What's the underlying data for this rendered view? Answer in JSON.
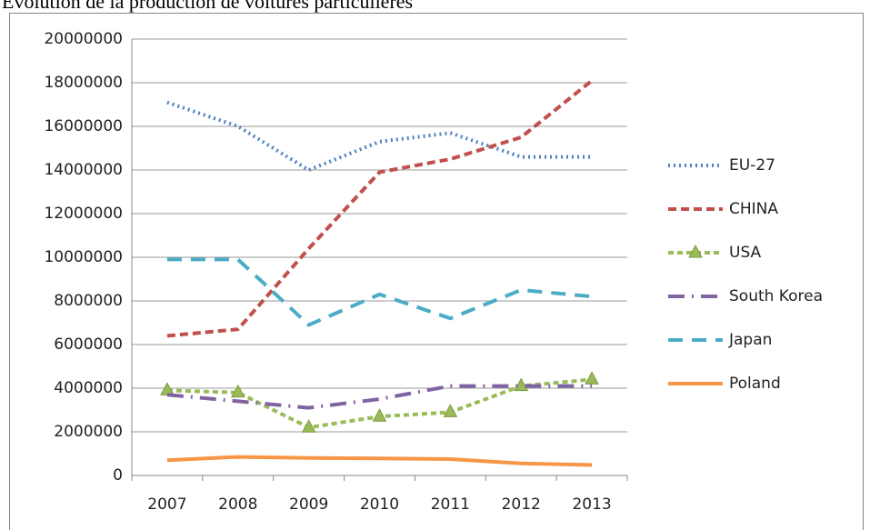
{
  "chart_data": {
    "type": "line",
    "title": "Évolution de la production de voitures particulières",
    "categories": [
      "2007",
      "2008",
      "2009",
      "2010",
      "2011",
      "2012",
      "2013"
    ],
    "ylim": [
      0,
      20000000
    ],
    "yticks": [
      0,
      2000000,
      4000000,
      6000000,
      8000000,
      10000000,
      12000000,
      14000000,
      16000000,
      18000000,
      20000000
    ],
    "grid": true,
    "legend": "right",
    "series": [
      {
        "name": "EU-27",
        "color": "#4f81bd",
        "line_style": "dotted",
        "values": [
          17100000,
          16000000,
          14000000,
          15300000,
          15700000,
          14600000,
          14600000
        ]
      },
      {
        "name": "CHINA",
        "color": "#c0504d",
        "line_style": "dashed",
        "values": [
          6400000,
          6700000,
          10400000,
          13900000,
          14500000,
          15500000,
          18100000
        ]
      },
      {
        "name": "USA",
        "color": "#9bbb59",
        "line_style": "short-dashed",
        "marker": "triangle",
        "values": [
          3900000,
          3800000,
          2200000,
          2700000,
          2900000,
          4100000,
          4400000
        ]
      },
      {
        "name": "South Korea",
        "color": "#8064a2",
        "line_style": "dash-dot",
        "values": [
          3700000,
          3400000,
          3100000,
          3500000,
          4100000,
          4100000,
          4100000
        ]
      },
      {
        "name": "Japan",
        "color": "#4bacc6",
        "line_style": "long-dashed",
        "values": [
          9900000,
          9900000,
          6900000,
          8300000,
          7200000,
          8500000,
          8200000
        ]
      },
      {
        "name": "Poland",
        "color": "#f79646",
        "line_style": "solid",
        "values": [
          700000,
          850000,
          800000,
          780000,
          750000,
          550000,
          480000
        ]
      }
    ]
  }
}
